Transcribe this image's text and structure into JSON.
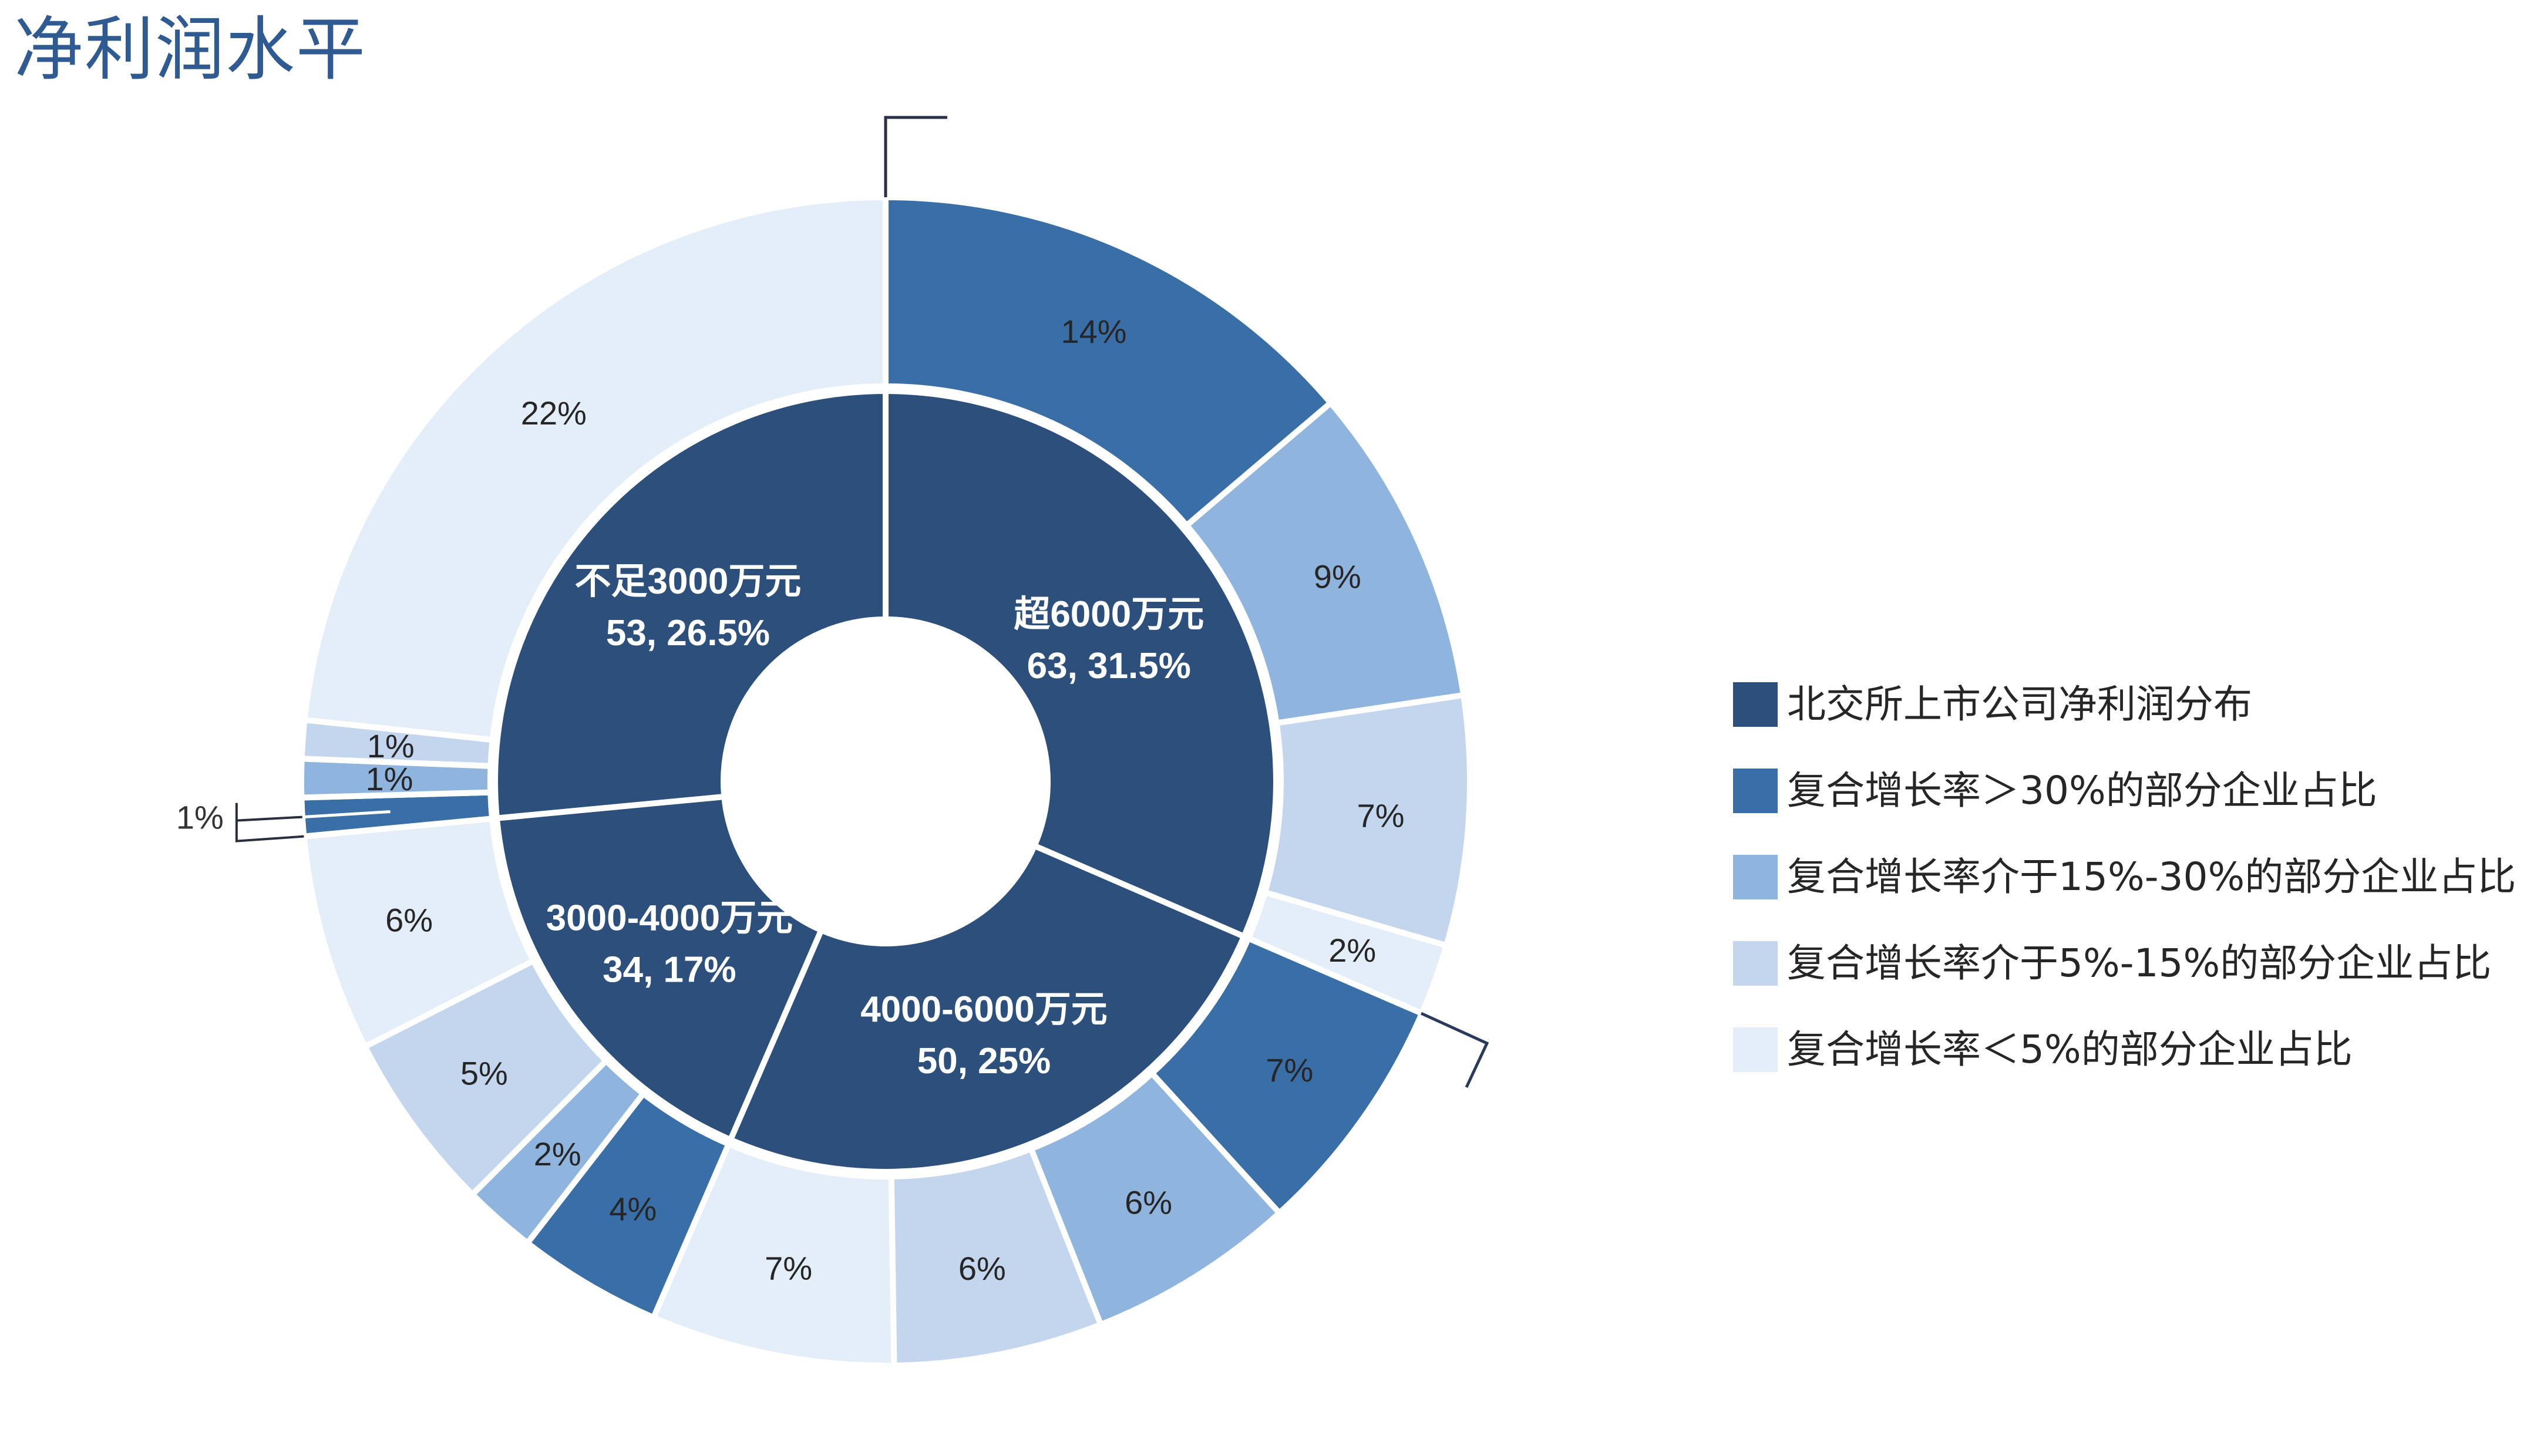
{
  "title": "净利润水平",
  "legend": {
    "items": [
      {
        "label": "北交所上市公司净利润分布",
        "color": "#2c4f7c"
      },
      {
        "label": "复合增长率＞30%的部分企业占比",
        "color": "#3a6ea6"
      },
      {
        "label": "复合增长率介于15%-30%的部分企业占比",
        "color": "#8fb4de"
      },
      {
        "label": "复合增长率介于5%-15%的部分企业占比",
        "color": "#c3d6ee"
      },
      {
        "label": "复合增长率＜5%的部分企业占比",
        "color": "#e4eef9"
      }
    ]
  },
  "chart_data": {
    "type": "pie",
    "subtype": "double-donut",
    "title": "净利润水平",
    "xlabel": "",
    "ylabel": "",
    "grid": false,
    "legend_position": "right",
    "inner_ring": {
      "series_name": "北交所上市公司净利润分布",
      "categories": [
        "超6000万元",
        "4000-6000万元",
        "3000-4000万元",
        "不足3000万元"
      ],
      "counts": [
        63,
        50,
        34,
        53
      ],
      "percents": [
        31.5,
        25,
        17,
        26.5
      ],
      "value_labels": [
        "63, 31.5%",
        "50, 25%",
        "34, 17%",
        "53, 26.5%"
      ],
      "color": "#2c4f7c"
    },
    "outer_ring": {
      "series": [
        "复合增长率＞30%的部分企业占比",
        "复合增长率介于15%-30%的部分企业占比",
        "复合增长率介于5%-15%的部分企业占比",
        "复合增长率＜5%的部分企业占比"
      ],
      "colors": [
        "#3a6ea6",
        "#8fb4de",
        "#c3d6ee",
        "#e4eef9"
      ],
      "groups": [
        {
          "parent": "超6000万元",
          "values": [
            14,
            9,
            7,
            2
          ],
          "labels": [
            "14%",
            "9%",
            "7%",
            "2%"
          ]
        },
        {
          "parent": "4000-6000万元",
          "values": [
            7,
            6,
            6,
            7
          ],
          "labels": [
            "7%",
            "6%",
            "6%",
            "7%"
          ]
        },
        {
          "parent": "3000-4000万元",
          "values": [
            4,
            2,
            5,
            6
          ],
          "labels": [
            "4%",
            "2%",
            "5%",
            "6%"
          ]
        },
        {
          "parent": "不足3000万元",
          "values": [
            1,
            1,
            1,
            22
          ],
          "labels": [
            "1%",
            "1%",
            "1%",
            "22%"
          ],
          "label_outside": [
            true,
            false,
            false,
            false
          ]
        }
      ]
    }
  }
}
